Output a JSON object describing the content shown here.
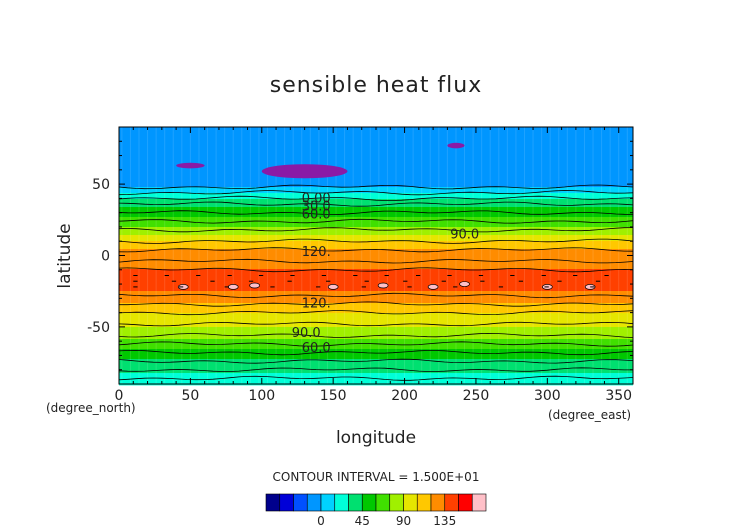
{
  "chart_data": {
    "type": "heatmap",
    "title": "sensible heat flux",
    "xlabel": "longitude",
    "ylabel": "latitude",
    "x_unit": "(degree_east)",
    "y_unit": "(degree_north)",
    "xlim": [
      0,
      360
    ],
    "ylim": [
      -90,
      90
    ],
    "x_ticks": [
      0,
      50,
      100,
      150,
      200,
      250,
      300,
      350
    ],
    "y_ticks": [
      50,
      0,
      -50
    ],
    "contour_interval_label": "CONTOUR INTERVAL = 1.500E+01",
    "contour_labels": [
      "0.00",
      "30.0",
      "60.0",
      "90.0",
      "120.",
      "120.",
      "90.0",
      "60.0"
    ],
    "colorbar": {
      "tick_labels": [
        "0",
        "45",
        "90",
        "135"
      ],
      "levels": [
        -45,
        -30,
        -15,
        0,
        15,
        30,
        45,
        60,
        75,
        90,
        105,
        120,
        135,
        150
      ],
      "colors": [
        "#00008c",
        "#0000d8",
        "#0050ff",
        "#0096ff",
        "#00d2ff",
        "#00ffd8",
        "#00e070",
        "#00c800",
        "#40e000",
        "#a0f000",
        "#e6e600",
        "#ffc800",
        "#ff8c00",
        "#ff4000",
        "#ff0000",
        "#ffc0c8"
      ]
    },
    "latitude_profile": {
      "lat": [
        90,
        80,
        70,
        60,
        55,
        50,
        46,
        42,
        38,
        34,
        30,
        26,
        22,
        18,
        14,
        10,
        6,
        2,
        -2,
        -6,
        -10,
        -14,
        -18,
        -22,
        -26,
        -30,
        -34,
        -38,
        -42,
        -46,
        -50,
        -54,
        -58,
        -62,
        -66,
        -70,
        -74,
        -78,
        -82,
        -86,
        -90
      ],
      "value": [
        -10,
        -8,
        -6,
        -5,
        -4,
        -3,
        5,
        20,
        35,
        45,
        55,
        62,
        70,
        80,
        92,
        105,
        118,
        125,
        128,
        132,
        135,
        140,
        145,
        142,
        132,
        125,
        118,
        108,
        102,
        95,
        90,
        82,
        75,
        66,
        58,
        50,
        42,
        35,
        30,
        25,
        22
      ]
    }
  }
}
